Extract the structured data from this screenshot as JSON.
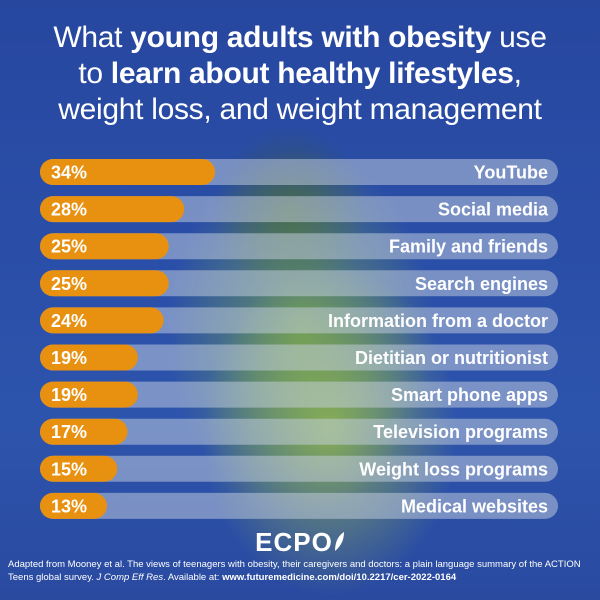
{
  "title": {
    "part1": "What ",
    "bold1": "young adults with obesity",
    "part2": " use",
    "part3": "to ",
    "bold2": "learn about healthy lifestyles",
    "part4": ",",
    "line3": "weight loss, and weight management"
  },
  "colors": {
    "bar": "#e8900f",
    "track": "#c8d2e1",
    "background": "#2a4ea8",
    "text": "#ffffff"
  },
  "chart_data": {
    "type": "bar",
    "orientation": "horizontal",
    "categories": [
      "YouTube",
      "Social media",
      "Family and friends",
      "Search engines",
      "Information from a doctor",
      "Dietitian or nutritionist",
      "Smart phone apps",
      "Television programs",
      "Weight loss programs",
      "Medical websites"
    ],
    "values": [
      34,
      28,
      25,
      25,
      24,
      19,
      19,
      17,
      15,
      13
    ],
    "value_labels": [
      "34%",
      "28%",
      "25%",
      "25%",
      "24%",
      "19%",
      "19%",
      "17%",
      "15%",
      "13%"
    ],
    "unit": "%"
  },
  "logo": {
    "text": "ECPO",
    "icon": "leaf-icon"
  },
  "source": {
    "text1": "Adapted from Mooney et al. The views of teenagers with obesity, their caregivers and doctors: a plain language summary of the ACTION Teens global survey. ",
    "journal": "J Comp Eff Res",
    "text2": ". Available at: ",
    "url": "www.futuremedicine.com/doi/10.2217/cer-2022-0164"
  }
}
